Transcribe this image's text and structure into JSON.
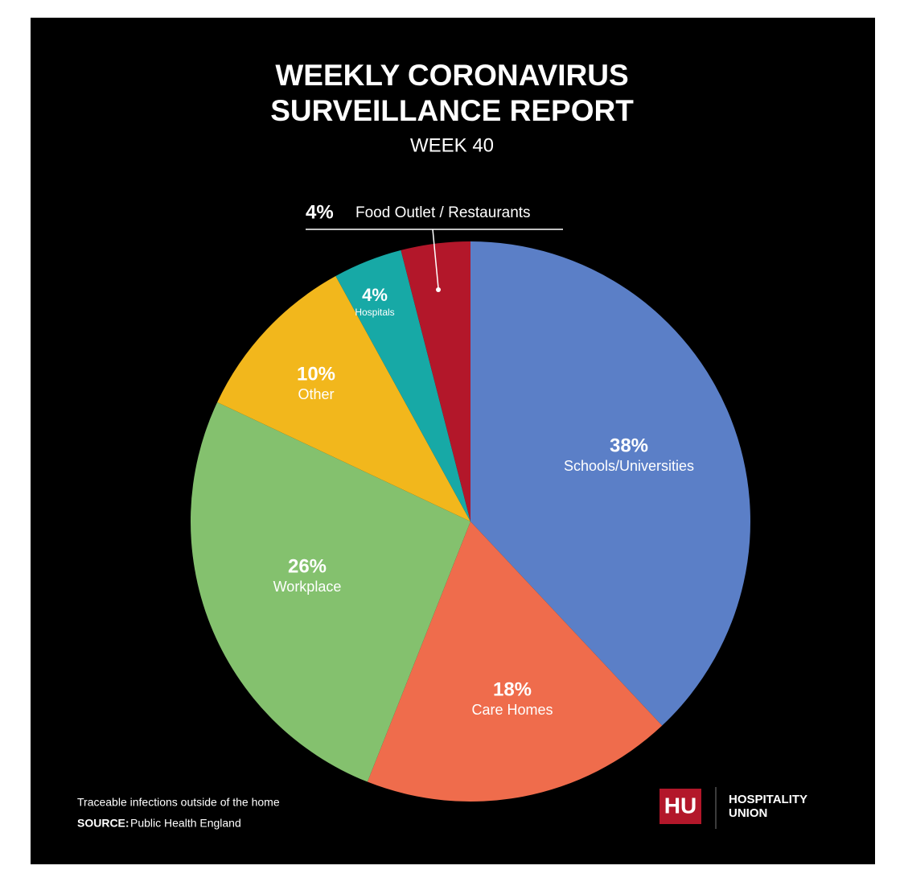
{
  "chart_data": {
    "type": "pie",
    "title": "WEEKLY CORONAVIRUS SURVEILLANCE REPORT",
    "subtitle": "WEEK 40",
    "categories": [
      "Schools/Universities",
      "Care Homes",
      "Workplace",
      "Other",
      "Hospitals",
      "Food Outlet / Restaurants"
    ],
    "values": [
      38,
      18,
      26,
      10,
      4,
      4
    ],
    "value_labels": [
      "38%",
      "18%",
      "26%",
      "10%",
      "4%",
      "4%"
    ],
    "colors": [
      "#5b7fc7",
      "#ef6c4c",
      "#84c16e",
      "#f2b71c",
      "#17a9a6",
      "#b3172a"
    ],
    "note": "Traceable infections outside of the home",
    "source_label": "SOURCE:",
    "source": "Public Health England",
    "logo_mark": "HU",
    "logo_name": [
      "HOSPITALITY",
      "UNION"
    ]
  }
}
